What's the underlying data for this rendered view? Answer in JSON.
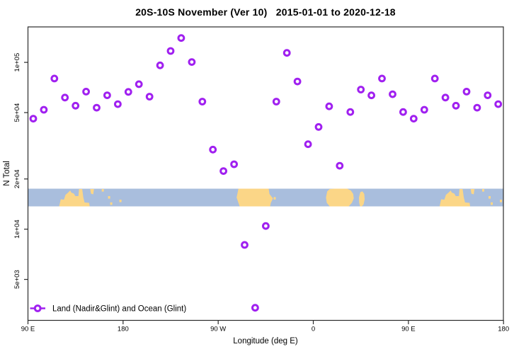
{
  "chart_data": {
    "type": "scatter",
    "title": "20S-10S November (Ver 10)   2015-01-01 to 2020-12-18",
    "xlabel": "Longitude (deg E)",
    "ylabel": "N Total",
    "legend": {
      "position": "bottom-left-inside",
      "entries": [
        {
          "label": "Land (Nadir&Glint) and Ocean (Glint)",
          "marker": "open-circle-on-line",
          "color": "#A020F0"
        }
      ]
    },
    "x_axis": {
      "kind": "longitude-wrapped",
      "range_axis_deg": [
        90,
        540
      ],
      "ticks": [
        {
          "axis_deg": 90,
          "label": "90 E"
        },
        {
          "axis_deg": 180,
          "label": "180"
        },
        {
          "axis_deg": 270,
          "label": "90 W"
        },
        {
          "axis_deg": 360,
          "label": "0"
        },
        {
          "axis_deg": 450,
          "label": "90 E"
        },
        {
          "axis_deg": 540,
          "label": "180"
        }
      ]
    },
    "y_axis": {
      "scale": "log10",
      "range": [
        2800,
        165000
      ],
      "ticks": [
        {
          "value": 5000,
          "label": "5e+03"
        },
        {
          "value": 10000,
          "label": "1e+04"
        },
        {
          "value": 20000,
          "label": "2e+04"
        },
        {
          "value": 50000,
          "label": "5e+04"
        },
        {
          "value": 100000,
          "label": "1e+05"
        }
      ]
    },
    "series": [
      {
        "name": "Land (Nadir&Glint) and Ocean (Glint)",
        "marker_color": "#A020F0",
        "points_columns": [
          "longitude_axis_deg",
          "n_total"
        ],
        "points": [
          [
            95,
            46000
          ],
          [
            105,
            52000
          ],
          [
            115,
            80000
          ],
          [
            125,
            61500
          ],
          [
            135,
            55000
          ],
          [
            145,
            66800
          ],
          [
            155,
            53500
          ],
          [
            165,
            63500
          ],
          [
            175,
            56200
          ],
          [
            185,
            66500
          ],
          [
            195,
            74000
          ],
          [
            205,
            62300
          ],
          [
            215,
            96000
          ],
          [
            225,
            117000
          ],
          [
            235,
            140000
          ],
          [
            245,
            100500
          ],
          [
            255,
            58200
          ],
          [
            265,
            30000
          ],
          [
            275,
            22300
          ],
          [
            285,
            24500
          ],
          [
            295,
            8050
          ],
          [
            305,
            3380
          ],
          [
            315,
            10450
          ],
          [
            325,
            58200
          ],
          [
            335,
            114000
          ],
          [
            345,
            76800
          ],
          [
            355,
            32300
          ],
          [
            365,
            41000
          ],
          [
            375,
            54500
          ],
          [
            385,
            24000
          ],
          [
            395,
            50400
          ],
          [
            405,
            68700
          ],
          [
            415,
            63400
          ],
          [
            425,
            80000
          ],
          [
            435,
            64400
          ],
          [
            445,
            50400
          ],
          [
            455,
            46000
          ],
          [
            465,
            52000
          ],
          [
            475,
            80000
          ],
          [
            485,
            61500
          ],
          [
            495,
            55000
          ],
          [
            505,
            66800
          ],
          [
            515,
            53500
          ],
          [
            525,
            63500
          ],
          [
            535,
            56200
          ]
        ]
      }
    ],
    "map_band": {
      "description": "20S-10S latitude strip land/ocean map drawn across plot",
      "ocean_color": "#A9BEDD",
      "land_color": "#FBD687",
      "value_span_top_bottom": [
        "10S",
        "20S"
      ],
      "land_polygons": [
        {
          "name": "australia",
          "pts": [
            [
              119.5,
              1
            ],
            [
              121,
              0.6
            ],
            [
              124,
              0.62
            ],
            [
              125.5,
              0.35
            ],
            [
              128,
              0.22
            ],
            [
              130,
              0.1
            ],
            [
              131,
              0.22
            ],
            [
              133.5,
              0.28
            ],
            [
              134.8,
              0.42
            ],
            [
              137.8,
              0.42
            ],
            [
              138.3,
              0.02
            ],
            [
              141.3,
              0.02
            ],
            [
              142.4,
              0.5
            ],
            [
              143.6,
              0.78
            ],
            [
              147.9,
              0.8
            ],
            [
              148.4,
              1
            ]
          ]
        },
        {
          "name": "new-guinea-tip",
          "pts": [
            [
              148.9,
              0.02
            ],
            [
              152.5,
              0.02
            ],
            [
              151.8,
              0.32
            ],
            [
              149.6,
              0.28
            ]
          ]
        },
        {
          "name": "south-america",
          "pts": [
            [
              289.2,
              0
            ],
            [
              317.8,
              0
            ],
            [
              318.5,
              0.3
            ],
            [
              321.8,
              0.55
            ],
            [
              319.8,
              0.8
            ],
            [
              319.1,
              1
            ],
            [
              290.3,
              1
            ],
            [
              287.4,
              0.5
            ]
          ]
        },
        {
          "name": "africa",
          "pts": [
            [
              372,
              0.5
            ],
            [
              373.2,
              0.15
            ],
            [
              375.5,
              0.02
            ],
            [
              380,
              0
            ],
            [
              392,
              0
            ],
            [
              395.5,
              0.1
            ],
            [
              397.8,
              0.3
            ],
            [
              398.3,
              0.55
            ],
            [
              396.5,
              0.8
            ],
            [
              393.5,
              1
            ],
            [
              375.5,
              1
            ],
            [
              372.8,
              0.8
            ]
          ]
        },
        {
          "name": "madagascar",
          "pts": [
            [
              403.2,
              0.5
            ],
            [
              404.5,
              0.2
            ],
            [
              406.5,
              0.15
            ],
            [
              408.2,
              0.3
            ],
            [
              408.6,
              0.6
            ],
            [
              407.5,
              0.9
            ],
            [
              405.8,
              1
            ],
            [
              404.3,
              1
            ],
            [
              403.4,
              0.8
            ]
          ]
        },
        {
          "name": "australia-repeat",
          "pts": [
            [
              479.5,
              1
            ],
            [
              481,
              0.6
            ],
            [
              484,
              0.62
            ],
            [
              485.5,
              0.35
            ],
            [
              488,
              0.22
            ],
            [
              490,
              0.1
            ],
            [
              491,
              0.22
            ],
            [
              493.5,
              0.28
            ],
            [
              494.8,
              0.42
            ],
            [
              497.8,
              0.42
            ],
            [
              498.3,
              0.02
            ],
            [
              501.3,
              0.02
            ],
            [
              502.4,
              0.5
            ],
            [
              503.6,
              0.78
            ],
            [
              507.9,
              0.8
            ],
            [
              508.4,
              1
            ]
          ]
        },
        {
          "name": "new-guinea-tip-repeat",
          "pts": [
            [
              508.9,
              0.02
            ],
            [
              512.5,
              0.02
            ],
            [
              511.8,
              0.32
            ],
            [
              509.6,
              0.28
            ]
          ]
        }
      ],
      "island_dots": [
        [
          160.8,
          0.1
        ],
        [
          166.8,
          0.5
        ],
        [
          168.8,
          0.85
        ],
        [
          177.5,
          0.7
        ],
        [
          323.5,
          0.55
        ],
        [
          520.8,
          0.1
        ],
        [
          526.8,
          0.5
        ],
        [
          528.8,
          0.85
        ],
        [
          537.5,
          0.7
        ]
      ]
    }
  }
}
